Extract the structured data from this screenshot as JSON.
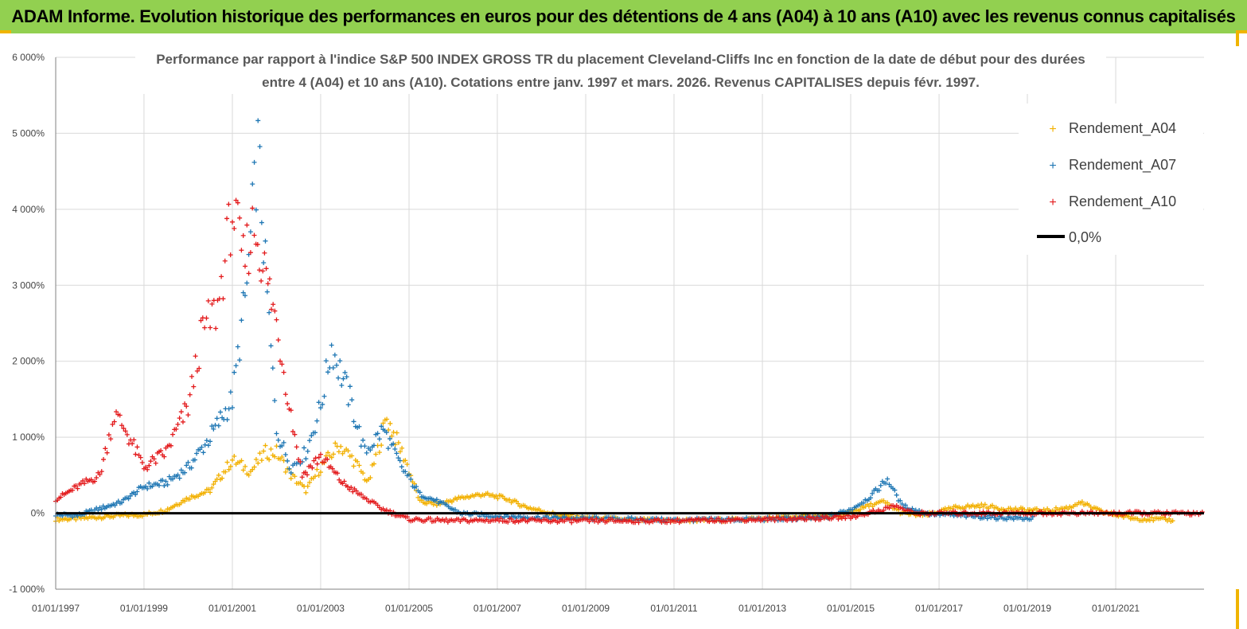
{
  "banner": {
    "title": "ADAM Informe. Evolution historique des performances en euros pour des détentions de 4 ans (A04) à 10 ans (A10) avec les revenus connus capitalisés",
    "color": "#92d050"
  },
  "chart_data": {
    "type": "scatter",
    "title_line1": "Performance par rapport à l'indice S&P 500 INDEX GROSS TR  du placement Cleveland-Cliffs Inc en fonction de la date de début pour des durées",
    "title_line2": "entre 4 (A04) et 10 ans (A10). Cotations entre janv. 1997 et mars. 2026. Revenus CAPITALISES depuis févr. 1997.",
    "xlabel": "",
    "ylabel": "",
    "ylim": [
      -1000,
      6000
    ],
    "y_ticks": [
      {
        "value": -1000,
        "label": "-1 000%"
      },
      {
        "value": 0,
        "label": "0%"
      },
      {
        "value": 1000,
        "label": "1 000%"
      },
      {
        "value": 2000,
        "label": "2 000%"
      },
      {
        "value": 3000,
        "label": "3 000%"
      },
      {
        "value": 4000,
        "label": "4 000%"
      },
      {
        "value": 5000,
        "label": "5 000%"
      },
      {
        "value": 6000,
        "label": "6 000%"
      }
    ],
    "xlim": [
      "1997-01-01",
      "2023-01-01"
    ],
    "x_ticks": [
      {
        "value": "1997-01-01",
        "label": "01/01/1997"
      },
      {
        "value": "1999-01-01",
        "label": "01/01/1999"
      },
      {
        "value": "2001-01-01",
        "label": "01/01/2001"
      },
      {
        "value": "2003-01-01",
        "label": "01/01/2003"
      },
      {
        "value": "2005-01-01",
        "label": "01/01/2005"
      },
      {
        "value": "2007-01-01",
        "label": "01/01/2007"
      },
      {
        "value": "2009-01-01",
        "label": "01/01/2009"
      },
      {
        "value": "2011-01-01",
        "label": "01/01/2011"
      },
      {
        "value": "2013-01-01",
        "label": "01/01/2013"
      },
      {
        "value": "2015-01-01",
        "label": "01/01/2015"
      },
      {
        "value": "2017-01-01",
        "label": "01/01/2017"
      },
      {
        "value": "2019-01-01",
        "label": "01/01/2019"
      },
      {
        "value": "2021-01-01",
        "label": "01/01/2021"
      }
    ],
    "grid": true,
    "legend_position": "top-right",
    "series": [
      {
        "name": "Rendement_A04",
        "color": "#f2b000",
        "points": [
          [
            "1997-01-01",
            -80
          ],
          [
            "1997-07-01",
            -70
          ],
          [
            "1998-01-01",
            -50
          ],
          [
            "1998-07-01",
            -30
          ],
          [
            "1999-01-01",
            -20
          ],
          [
            "1999-07-01",
            40
          ],
          [
            "2000-01-01",
            200
          ],
          [
            "2000-07-01",
            300
          ],
          [
            "2001-01-01",
            700
          ],
          [
            "2001-06-01",
            550
          ],
          [
            "2001-10-01",
            800
          ],
          [
            "2002-01-01",
            800
          ],
          [
            "2002-05-01",
            500
          ],
          [
            "2002-09-01",
            300
          ],
          [
            "2003-01-01",
            600
          ],
          [
            "2003-06-01",
            900
          ],
          [
            "2003-10-01",
            700
          ],
          [
            "2004-02-01",
            400
          ],
          [
            "2004-07-01",
            1250
          ],
          [
            "2004-12-01",
            700
          ],
          [
            "2005-04-01",
            150
          ],
          [
            "2005-09-01",
            120
          ],
          [
            "2006-03-01",
            200
          ],
          [
            "2006-09-01",
            250
          ],
          [
            "2007-03-01",
            200
          ],
          [
            "2007-09-01",
            80
          ],
          [
            "2008-06-01",
            -30
          ],
          [
            "2009-01-01",
            -60
          ],
          [
            "2010-01-01",
            -90
          ],
          [
            "2011-01-01",
            -95
          ],
          [
            "2012-01-01",
            -90
          ],
          [
            "2013-01-01",
            -70
          ],
          [
            "2014-01-01",
            -40
          ],
          [
            "2014-10-01",
            -40
          ],
          [
            "2015-06-01",
            100
          ],
          [
            "2015-10-01",
            150
          ],
          [
            "2016-03-01",
            0
          ],
          [
            "2016-09-01",
            -30
          ],
          [
            "2017-06-01",
            80
          ],
          [
            "2018-01-01",
            100
          ],
          [
            "2018-06-01",
            60
          ],
          [
            "2019-06-01",
            30
          ],
          [
            "2020-01-01",
            80
          ],
          [
            "2020-03-01",
            150
          ],
          [
            "2020-09-01",
            20
          ],
          [
            "2021-06-01",
            -70
          ],
          [
            "2022-05-01",
            -90
          ]
        ]
      },
      {
        "name": "Rendement_A07",
        "color": "#1f77b4",
        "points": [
          [
            "1997-01-01",
            -20
          ],
          [
            "1997-07-01",
            -30
          ],
          [
            "1998-01-01",
            60
          ],
          [
            "1998-07-01",
            150
          ],
          [
            "1999-01-01",
            350
          ],
          [
            "1999-07-01",
            400
          ],
          [
            "2000-01-01",
            600
          ],
          [
            "2000-07-01",
            1000
          ],
          [
            "2001-01-01",
            1500
          ],
          [
            "2001-05-01",
            3000
          ],
          [
            "2001-08-01",
            4800
          ],
          [
            "2001-10-01",
            3200
          ],
          [
            "2002-01-01",
            1100
          ],
          [
            "2002-05-01",
            600
          ],
          [
            "2002-09-01",
            800
          ],
          [
            "2003-01-01",
            1400
          ],
          [
            "2003-04-01",
            2200
          ],
          [
            "2003-09-01",
            1500
          ],
          [
            "2004-01-01",
            800
          ],
          [
            "2004-06-01",
            1100
          ],
          [
            "2004-11-01",
            600
          ],
          [
            "2005-04-01",
            250
          ],
          [
            "2005-09-01",
            150
          ],
          [
            "2006-03-01",
            0
          ],
          [
            "2007-01-01",
            -40
          ],
          [
            "2008-01-01",
            -60
          ],
          [
            "2009-01-01",
            -70
          ],
          [
            "2011-01-01",
            -90
          ],
          [
            "2013-01-01",
            -80
          ],
          [
            "2014-06-01",
            -60
          ],
          [
            "2015-01-01",
            50
          ],
          [
            "2015-06-01",
            200
          ],
          [
            "2015-11-01",
            450
          ],
          [
            "2016-03-01",
            100
          ],
          [
            "2016-09-01",
            0
          ],
          [
            "2017-06-01",
            -30
          ],
          [
            "2018-06-01",
            -60
          ],
          [
            "2019-03-01",
            -70
          ]
        ]
      },
      {
        "name": "Rendement_A10",
        "color": "#e31a1c",
        "points": [
          [
            "1997-01-01",
            180
          ],
          [
            "1997-07-01",
            350
          ],
          [
            "1998-01-01",
            500
          ],
          [
            "1998-05-01",
            1300
          ],
          [
            "1998-08-01",
            1100
          ],
          [
            "1999-01-01",
            600
          ],
          [
            "1999-07-01",
            800
          ],
          [
            "2000-01-01",
            1400
          ],
          [
            "2000-05-01",
            2400
          ],
          [
            "2000-09-01",
            2700
          ],
          [
            "2001-01-01",
            4000
          ],
          [
            "2001-04-01",
            3300
          ],
          [
            "2001-07-01",
            3800
          ],
          [
            "2002-01-01",
            2500
          ],
          [
            "2002-05-01",
            1300
          ],
          [
            "2002-08-01",
            500
          ],
          [
            "2003-01-01",
            750
          ],
          [
            "2003-07-01",
            400
          ],
          [
            "2004-01-01",
            200
          ],
          [
            "2004-06-01",
            50
          ],
          [
            "2005-01-01",
            -80
          ],
          [
            "2006-01-01",
            -100
          ],
          [
            "2007-01-01",
            -90
          ],
          [
            "2008-01-01",
            -100
          ],
          [
            "2009-01-01",
            -100
          ],
          [
            "2010-01-01",
            -100
          ],
          [
            "2011-01-01",
            -100
          ],
          [
            "2012-01-01",
            -90
          ],
          [
            "2013-01-01",
            -80
          ],
          [
            "2014-01-01",
            -70
          ],
          [
            "2015-01-01",
            -50
          ],
          [
            "2015-10-01",
            50
          ],
          [
            "2016-01-01",
            100
          ],
          [
            "2016-06-01",
            0
          ],
          [
            "2018-01-01",
            0
          ],
          [
            "2020-01-01",
            0
          ],
          [
            "2022-01-01",
            0
          ],
          [
            "2023-01-01",
            0
          ]
        ]
      }
    ],
    "reference_line": {
      "name": "0,0%",
      "value": 0,
      "color": "#000000"
    }
  }
}
